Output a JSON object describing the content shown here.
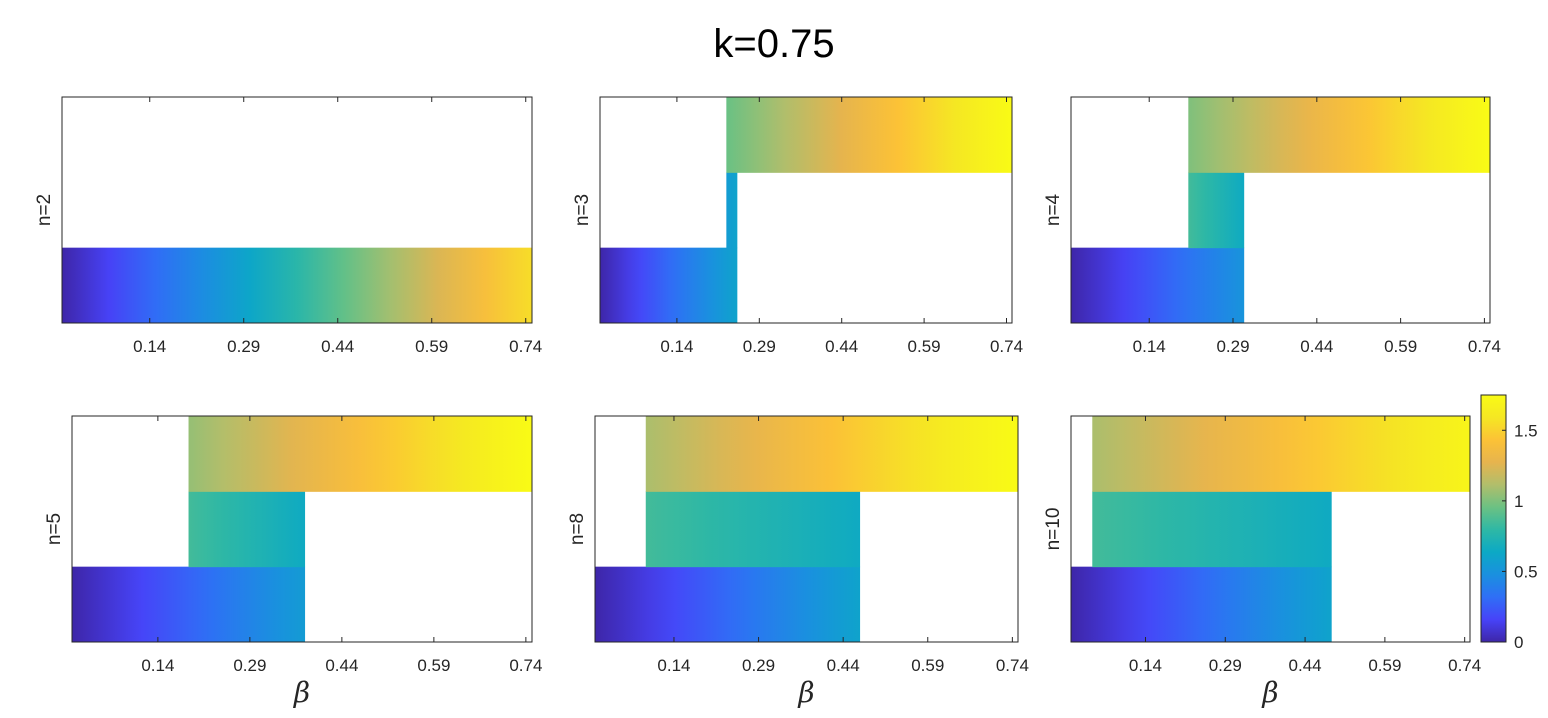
{
  "title": "k=0.75",
  "colormap": [
    "#3E26A8",
    "#4743F8",
    "#2F6FF6",
    "#1A90DF",
    "#0CA9C5",
    "#2EB8A5",
    "#6BC183",
    "#B1BE6B",
    "#E6B44E",
    "#FCC236",
    "#F5E723",
    "#F9FB15"
  ],
  "colorbar": {
    "min": 0,
    "max": 1.75,
    "ticks": [
      "0",
      "0.5",
      "1",
      "1.5"
    ]
  },
  "chart_data": [
    {
      "type": "heatmap",
      "ylabel": "n=2",
      "xlabel": "",
      "x_ticks": [
        "0.14",
        "0.29",
        "0.44",
        "0.59",
        "0.74"
      ],
      "bands": [
        {
          "row": "bottom",
          "x_start": 0.0,
          "x_end": 0.75,
          "v_start": 0.0,
          "v_end": 1.55
        }
      ]
    },
    {
      "type": "heatmap",
      "ylabel": "n=3",
      "xlabel": "",
      "x_ticks": [
        "0.14",
        "0.29",
        "0.44",
        "0.59",
        "0.74"
      ],
      "bands": [
        {
          "row": "bottom",
          "x_start": 0.0,
          "x_end": 0.25,
          "v_start": 0.0,
          "v_end": 0.6
        },
        {
          "row": "middle",
          "x_start": 0.23,
          "x_end": 0.25,
          "v_start": 0.55,
          "v_end": 0.6
        },
        {
          "row": "top",
          "x_start": 0.23,
          "x_end": 0.75,
          "v_start": 0.95,
          "v_end": 1.75
        }
      ]
    },
    {
      "type": "heatmap",
      "ylabel": "n=4",
      "xlabel": "",
      "x_ticks": [
        "0.14",
        "0.29",
        "0.44",
        "0.59",
        "0.74"
      ],
      "bands": [
        {
          "row": "bottom",
          "x_start": 0.0,
          "x_end": 0.31,
          "v_start": 0.0,
          "v_end": 0.5
        },
        {
          "row": "middle",
          "x_start": 0.21,
          "x_end": 0.31,
          "v_start": 0.85,
          "v_end": 0.65
        },
        {
          "row": "top",
          "x_start": 0.21,
          "x_end": 0.75,
          "v_start": 1.0,
          "v_end": 1.75
        }
      ]
    },
    {
      "type": "heatmap",
      "ylabel": "n=5",
      "xlabel": "β",
      "x_ticks": [
        "0.14",
        "0.29",
        "0.44",
        "0.59",
        "0.74"
      ],
      "bands": [
        {
          "row": "bottom",
          "x_start": 0.0,
          "x_end": 0.38,
          "v_start": 0.0,
          "v_end": 0.55
        },
        {
          "row": "middle",
          "x_start": 0.19,
          "x_end": 0.38,
          "v_start": 0.85,
          "v_end": 0.65
        },
        {
          "row": "top",
          "x_start": 0.19,
          "x_end": 0.75,
          "v_start": 1.05,
          "v_end": 1.75
        }
      ]
    },
    {
      "type": "heatmap",
      "ylabel": "n=8",
      "xlabel": "β",
      "x_ticks": [
        "0.14",
        "0.29",
        "0.44",
        "0.59",
        "0.74"
      ],
      "bands": [
        {
          "row": "bottom",
          "x_start": 0.0,
          "x_end": 0.47,
          "v_start": 0.0,
          "v_end": 0.6
        },
        {
          "row": "middle",
          "x_start": 0.09,
          "x_end": 0.47,
          "v_start": 0.85,
          "v_end": 0.65
        },
        {
          "row": "top",
          "x_start": 0.09,
          "x_end": 0.75,
          "v_start": 1.1,
          "v_end": 1.75
        }
      ]
    },
    {
      "type": "heatmap",
      "ylabel": "n=10",
      "xlabel": "β",
      "x_ticks": [
        "0.14",
        "0.29",
        "0.44",
        "0.59",
        "0.74"
      ],
      "bands": [
        {
          "row": "bottom",
          "x_start": 0.0,
          "x_end": 0.49,
          "v_start": 0.0,
          "v_end": 0.6
        },
        {
          "row": "middle",
          "x_start": 0.04,
          "x_end": 0.49,
          "v_start": 0.85,
          "v_end": 0.65
        },
        {
          "row": "top",
          "x_start": 0.04,
          "x_end": 0.75,
          "v_start": 1.1,
          "v_end": 1.7
        }
      ]
    }
  ]
}
